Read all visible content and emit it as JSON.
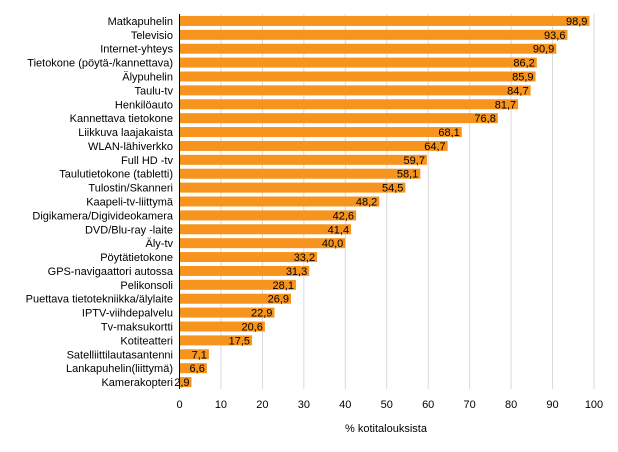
{
  "chart_data": {
    "type": "bar",
    "orientation": "horizontal",
    "xlabel": "% kotitalouksista",
    "xlim": [
      0,
      100
    ],
    "xticks": [
      0,
      10,
      20,
      30,
      40,
      50,
      60,
      70,
      80,
      90,
      100
    ],
    "grid": true,
    "bar_color": "#F7941D",
    "categories": [
      "Matkapuhelin",
      "Televisio",
      "Internet-yhteys",
      "Tietokone (pöytä-/kannettava)",
      "Älypuhelin",
      "Taulu-tv",
      "Henkilöauto",
      "Kannettava tietokone",
      "Liikkuva laajakaista",
      "WLAN-lähiverkko",
      "Full HD -tv",
      "Taulutietokone (tabletti)",
      "Tulostin/Skanneri",
      "Kaapeli-tv-liittymä",
      "Digikamera/Digivideokamera",
      "DVD/Blu-ray -laite",
      "Äly-tv",
      "Pöytätietokone",
      "GPS-navigaattori autossa",
      "Pelikonsoli",
      "Puettava tietotekniikka/älylaite",
      "IPTV-viihdepalvelu",
      "Tv-maksukortti",
      "Kotiteatteri",
      "Satelliittilautasantenni",
      "Lankapuhelin(liittymä)",
      "Kamerakopteri"
    ],
    "values": [
      98.9,
      93.6,
      90.9,
      86.2,
      85.9,
      84.7,
      81.7,
      76.8,
      68.1,
      64.7,
      59.7,
      58.1,
      54.5,
      48.2,
      42.6,
      41.4,
      40.0,
      33.2,
      31.3,
      28.1,
      26.9,
      22.9,
      20.6,
      17.5,
      7.1,
      6.6,
      2.9
    ],
    "value_labels": [
      "98,9",
      "93,6",
      "90,9",
      "86,2",
      "85,9",
      "84,7",
      "81,7",
      "76,8",
      "68,1",
      "64,7",
      "59,7",
      "58,1",
      "54,5",
      "48,2",
      "42,6",
      "41,4",
      "40,0",
      "33,2",
      "31,3",
      "28,1",
      "26,9",
      "22,9",
      "20,6",
      "17,5",
      "7,1",
      "6,6",
      "2,9"
    ]
  }
}
